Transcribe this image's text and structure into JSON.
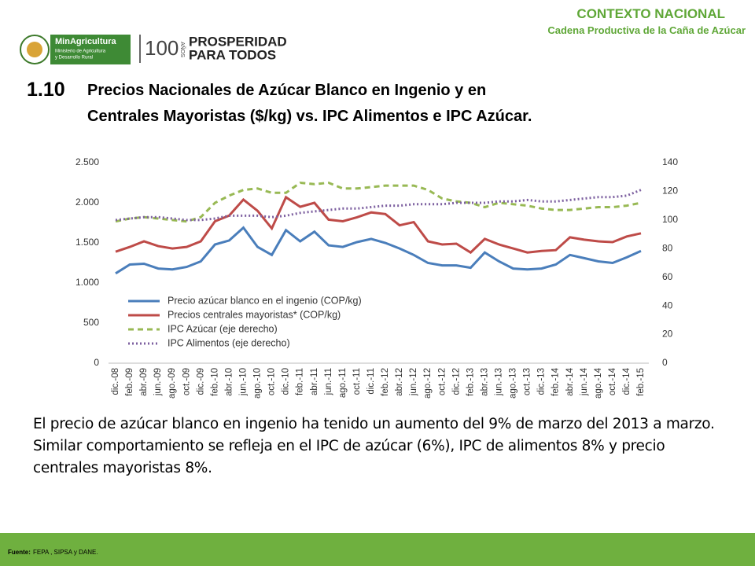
{
  "header": {
    "section": "CONTEXTO NACIONAL",
    "subsection": "Cadena Productiva de la Caña de Azúcar",
    "logo_ministry": "MinAgricultura",
    "logo_ministry_sub1": "Ministerio de Agricultura",
    "logo_ministry_sub2": "y Desarrollo Rural",
    "logo_years": "100",
    "logo_years_word": "AÑOS",
    "logo_slogan1": "PROSPERIDAD",
    "logo_slogan2": "PARA TODOS"
  },
  "number": "1.10",
  "title_lines": [
    "Precios Nacionales de Azúcar Blanco en Ingenio y en",
    "Centrales Mayoristas ($/kg) vs. IPC Alimentos e IPC Azúcar."
  ],
  "body": "El precio de azúcar blanco en ingenio ha tenido un aumento del 9% de marzo del 2013 a marzo. Similar comportamiento se refleja en el IPC de azúcar (6%), IPC de alimentos 8% y precio centrales mayoristas 8%.",
  "footer": {
    "label": "Fuente:",
    "text": "FEPA , SIPSA y DANE."
  },
  "chart_data": {
    "type": "line",
    "categories": [
      "dic.-08",
      "feb.-09",
      "abr.-09",
      "jun.-09",
      "ago.-09",
      "oct.-09",
      "dic.-09",
      "feb.-10",
      "abr.-10",
      "jun.-10",
      "ago.-10",
      "oct.-10",
      "dic.-10",
      "feb.-11",
      "abr.-11",
      "jun.-11",
      "ago.-11",
      "oct.-11",
      "dic.-11",
      "feb.-12",
      "abr.-12",
      "jun.-12",
      "ago.-12",
      "oct.-12",
      "dic.-12",
      "feb.-13",
      "abr.-13",
      "jun.-13",
      "ago.-13",
      "oct.-13",
      "dic.-13",
      "feb.-14",
      "abr.-14",
      "jun.-14",
      "ago.-14",
      "oct.-14",
      "dic.-14",
      "feb.-15"
    ],
    "series": [
      {
        "name": "Precio azúcar blanco en el ingenio (COP/kg)",
        "color": "#4a7ebb",
        "dash": "solid",
        "values": [
          1120,
          1230,
          1240,
          1180,
          1170,
          1200,
          1270,
          1480,
          1530,
          1690,
          1450,
          1350,
          1660,
          1520,
          1640,
          1470,
          1450,
          1510,
          1550,
          1500,
          1430,
          1350,
          1250,
          1220,
          1220,
          1190,
          1380,
          1270,
          1180,
          1170,
          1180,
          1230,
          1350,
          1310,
          1270,
          1250,
          1320,
          1400
        ]
      },
      {
        "name": "Precios centrales mayoristas* (COP/kg)",
        "color": "#be4b48",
        "dash": "solid",
        "values": [
          1390,
          1450,
          1520,
          1460,
          1430,
          1450,
          1520,
          1770,
          1840,
          2040,
          1900,
          1680,
          2070,
          1950,
          2000,
          1790,
          1770,
          1820,
          1880,
          1860,
          1720,
          1760,
          1520,
          1480,
          1490,
          1380,
          1550,
          1480,
          1430,
          1380,
          1400,
          1410,
          1570,
          1540,
          1520,
          1510,
          1580,
          1620
        ]
      },
      {
        "name": "IPC Azúcar (eje derecho)",
        "color": "#98b954",
        "dash": "dashed",
        "axis": "y2",
        "values": [
          99,
          101,
          102,
          101,
          100,
          99,
          102,
          112,
          117,
          121,
          122,
          119,
          119,
          126,
          125,
          126,
          122,
          122,
          123,
          124,
          124,
          124,
          121,
          115,
          113,
          112,
          109,
          112,
          111,
          110,
          108,
          107,
          107,
          108,
          109,
          109,
          110,
          112
        ]
      },
      {
        "name": "IPC Alimentos (eje derecho)",
        "color": "#7d60a0",
        "dash": "dotted",
        "axis": "y2",
        "values": [
          100,
          101,
          102,
          102,
          101,
          100,
          100,
          101,
          103,
          103,
          103,
          102,
          103,
          105,
          106,
          107,
          108,
          108,
          109,
          110,
          110,
          111,
          111,
          111,
          112,
          112,
          112,
          113,
          113,
          114,
          113,
          113,
          114,
          115,
          116,
          116,
          117,
          121
        ]
      }
    ],
    "ylim": [
      0,
      2500
    ],
    "yticks": [
      0,
      500,
      {
        "value": 1000,
        "label": "1.000"
      },
      {
        "value": 1500,
        "label": "1.500"
      },
      {
        "value": 2000,
        "label": "2.000"
      },
      {
        "value": 2500,
        "label": "2.500"
      }
    ],
    "y2lim": [
      0,
      140
    ],
    "y2ticks": [
      0,
      20,
      40,
      60,
      80,
      100,
      120,
      140
    ],
    "grid": false,
    "legend": "lower-left"
  }
}
